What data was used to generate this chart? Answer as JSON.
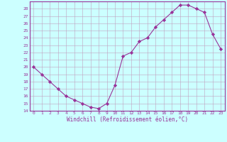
{
  "x": [
    0,
    1,
    2,
    3,
    4,
    5,
    6,
    7,
    8,
    9,
    10,
    11,
    12,
    13,
    14,
    15,
    16,
    17,
    18,
    19,
    20,
    21,
    22,
    23
  ],
  "y": [
    20,
    19,
    18,
    17,
    16,
    15.5,
    15,
    14.5,
    14.3,
    15,
    17.5,
    21.5,
    22,
    23.5,
    24,
    25.5,
    26.5,
    27.5,
    28.5,
    28.5,
    28,
    27.5,
    24.5,
    22.5
  ],
  "line_color": "#993399",
  "marker_color": "#993399",
  "bg_color": "#ccffff",
  "grid_color": "#c0a0c0",
  "xlabel": "Windchill (Refroidissement éolien,°C)",
  "ylim": [
    14,
    29
  ],
  "xlim": [
    -0.5,
    23.5
  ],
  "yticks": [
    14,
    15,
    16,
    17,
    18,
    19,
    20,
    21,
    22,
    23,
    24,
    25,
    26,
    27,
    28
  ],
  "xticks": [
    0,
    1,
    2,
    3,
    4,
    5,
    6,
    7,
    8,
    9,
    10,
    11,
    12,
    13,
    14,
    15,
    16,
    17,
    18,
    19,
    20,
    21,
    22,
    23
  ],
  "xtick_labels": [
    "0",
    "1",
    "2",
    "3",
    "4",
    "5",
    "6",
    "7",
    "8",
    "9",
    "10",
    "11",
    "12",
    "13",
    "14",
    "15",
    "16",
    "17",
    "18",
    "19",
    "20",
    "21",
    "22",
    "23"
  ],
  "spine_color": "#993399",
  "axis_line_color": "#993399",
  "tick_color": "#993399",
  "label_color": "#993399"
}
